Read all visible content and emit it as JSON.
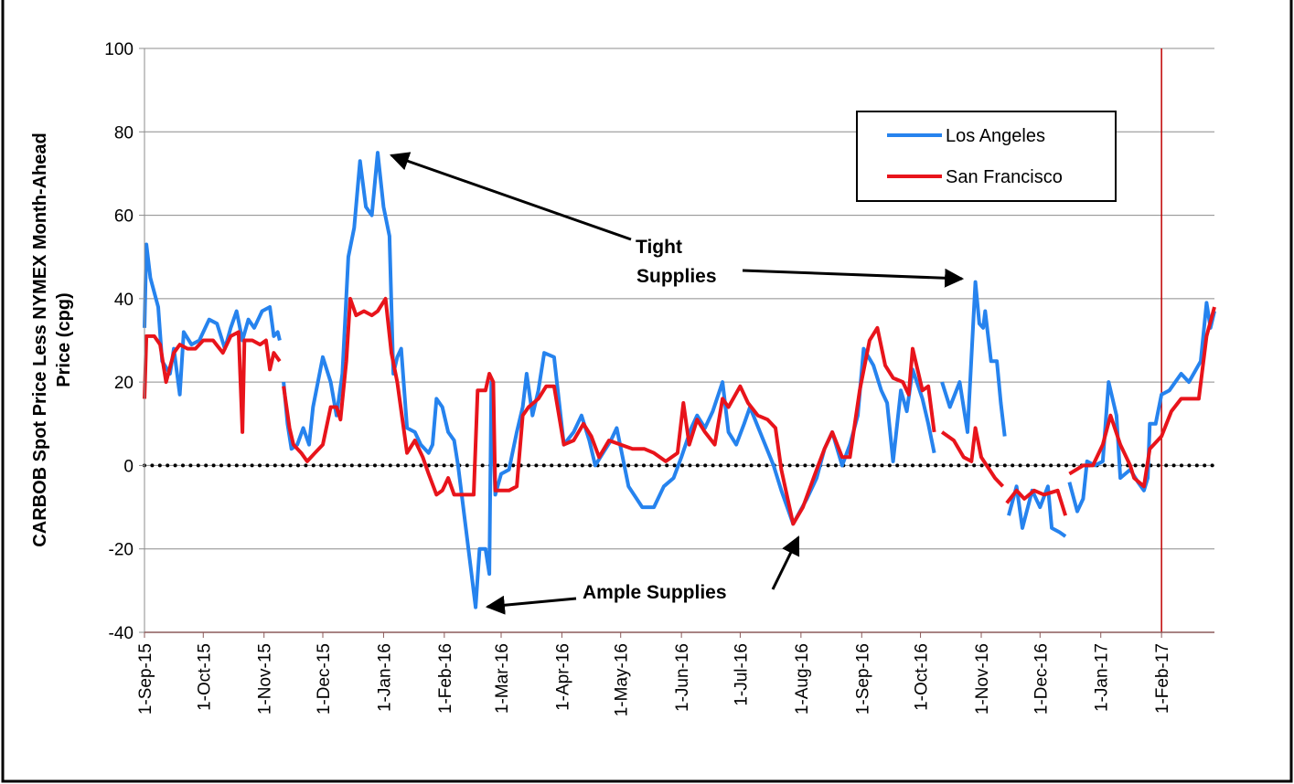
{
  "chart_data": {
    "type": "line",
    "ylabel": [
      "CARBOB Spot Price Less NYMEX Month-Ahead",
      "Price (cpg)"
    ],
    "xlim": [
      "2015-09-01",
      "2017-02-28"
    ],
    "ylim": [
      -40,
      100
    ],
    "yticks": [
      -40,
      -20,
      0,
      20,
      40,
      60,
      80,
      100
    ],
    "xticks": [
      {
        "value": "2015-09-01",
        "label": "1-Sep-15"
      },
      {
        "value": "2015-10-01",
        "label": "1-Oct-15"
      },
      {
        "value": "2015-11-01",
        "label": "1-Nov-15"
      },
      {
        "value": "2015-12-01",
        "label": "1-Dec-15"
      },
      {
        "value": "2016-01-01",
        "label": "1-Jan-16"
      },
      {
        "value": "2016-02-01",
        "label": "1-Feb-16"
      },
      {
        "value": "2016-03-01",
        "label": "1-Mar-16"
      },
      {
        "value": "2016-04-01",
        "label": "1-Apr-16"
      },
      {
        "value": "2016-05-01",
        "label": "1-May-16"
      },
      {
        "value": "2016-06-01",
        "label": "1-Jun-16"
      },
      {
        "value": "2016-07-01",
        "label": "1-Jul-16"
      },
      {
        "value": "2016-08-01",
        "label": "1-Aug-16"
      },
      {
        "value": "2016-09-01",
        "label": "1-Sep-16"
      },
      {
        "value": "2016-10-01",
        "label": "1-Oct-16"
      },
      {
        "value": "2016-11-01",
        "label": "1-Nov-16"
      },
      {
        "value": "2016-12-01",
        "label": "1-Dec-16"
      },
      {
        "value": "2017-01-01",
        "label": "1-Jan-17"
      },
      {
        "value": "2017-02-01",
        "label": "1-Feb-17"
      }
    ],
    "grid": true,
    "legend": "upper right",
    "reference_lines": [
      {
        "y": 0,
        "color": "#000000",
        "style": "dotted"
      }
    ],
    "vertical_lines": [
      {
        "x": "2017-02-01",
        "color": "#c00000"
      }
    ],
    "annotations": [
      "Tight",
      "Supplies",
      "Ample Supplies"
    ],
    "series": [
      {
        "name": "Los Angeles",
        "color": "#2683ee",
        "x": [
          "2015-09-01",
          "2015-09-02",
          "2015-09-04",
          "2015-09-08",
          "2015-09-10",
          "2015-09-14",
          "2015-09-16",
          "2015-09-19",
          "2015-09-21",
          "2015-09-25",
          "2015-09-29",
          "2015-10-04",
          "2015-10-08",
          "2015-10-12",
          "2015-10-15",
          "2015-10-18",
          "2015-10-21",
          "2015-10-24",
          "2015-10-27",
          "2015-10-31",
          "2015-11-04",
          "2015-11-06",
          "2015-11-08",
          "2015-11-09",
          "2015-11-10",
          "2015-11-11",
          "2015-11-13",
          "2015-11-15",
          "2015-11-18",
          "2015-11-21",
          "2015-11-24",
          "2015-11-26",
          "2015-12-01",
          "2015-12-05",
          "2015-12-08",
          "2015-12-11",
          "2015-12-14",
          "2015-12-17",
          "2015-12-20",
          "2015-12-23",
          "2015-12-26",
          "2015-12-29",
          "2016-01-01",
          "2016-01-04",
          "2016-01-06",
          "2016-01-08",
          "2016-01-10",
          "2016-01-13",
          "2016-01-17",
          "2016-01-20",
          "2016-01-24",
          "2016-01-26",
          "2016-01-28",
          "2016-01-31",
          "2016-02-03",
          "2016-02-06",
          "2016-02-08",
          "2016-02-12",
          "2016-02-17",
          "2016-02-19",
          "2016-02-22",
          "2016-02-24",
          "2016-02-25",
          "2016-02-27",
          "2016-03-01",
          "2016-03-05",
          "2016-03-09",
          "2016-03-12",
          "2016-03-14",
          "2016-03-17",
          "2016-03-20",
          "2016-03-23",
          "2016-03-28",
          "2016-04-02",
          "2016-04-07",
          "2016-04-11",
          "2016-04-15",
          "2016-04-18",
          "2016-04-22",
          "2016-04-26",
          "2016-04-29",
          "2016-05-05",
          "2016-05-12",
          "2016-05-18",
          "2016-05-23",
          "2016-05-28",
          "2016-06-01",
          "2016-06-06",
          "2016-06-09",
          "2016-06-13",
          "2016-06-17",
          "2016-06-22",
          "2016-06-25",
          "2016-06-29",
          "2016-07-03",
          "2016-07-06",
          "2016-07-12",
          "2016-07-18",
          "2016-07-22",
          "2016-07-28",
          "2016-08-04",
          "2016-08-09",
          "2016-08-13",
          "2016-08-17",
          "2016-08-22",
          "2016-08-26",
          "2016-08-30",
          "2016-09-02",
          "2016-09-07",
          "2016-09-11",
          "2016-09-14",
          "2016-09-17",
          "2016-09-21",
          "2016-09-24",
          "2016-09-27",
          "2016-10-02",
          "2016-10-05",
          "2016-10-08",
          "2016-10-10",
          "2016-10-12",
          "2016-10-16",
          "2016-10-21",
          "2016-10-25",
          "2016-10-29",
          "2016-10-31",
          "2016-11-02",
          "2016-11-03",
          "2016-11-06",
          "2016-11-09",
          "2016-11-11",
          "2016-11-13",
          "2016-11-14",
          "2016-11-15",
          "2016-11-19",
          "2016-11-22",
          "2016-11-27",
          "2016-12-01",
          "2016-12-05",
          "2016-12-07",
          "2016-12-11",
          "2016-12-14",
          "2016-12-15",
          "2016-12-16",
          "2016-12-20",
          "2016-12-23",
          "2016-12-25",
          "2016-12-29",
          "2017-01-02",
          "2017-01-05",
          "2017-01-09",
          "2017-01-11",
          "2017-01-16",
          "2017-01-20",
          "2017-01-23",
          "2017-01-25",
          "2017-01-26",
          "2017-01-29",
          "2017-02-01",
          "2017-02-05",
          "2017-02-11",
          "2017-02-15",
          "2017-02-21",
          "2017-02-24",
          "2017-02-26",
          "2017-02-28"
        ],
        "values": [
          33,
          53,
          45,
          38,
          25,
          22,
          28,
          17,
          32,
          29,
          30,
          35,
          34,
          28,
          33,
          37,
          30,
          35,
          33,
          37,
          38,
          31,
          32,
          30,
          null,
          20,
          10,
          4,
          5,
          9,
          5,
          14,
          26,
          20,
          12,
          22,
          50,
          57,
          73,
          62,
          60,
          75,
          62,
          55,
          22,
          26,
          28,
          9,
          8,
          5,
          3,
          5,
          16,
          14,
          8,
          6,
          0,
          -15,
          -34,
          -20,
          -20,
          -26,
          20,
          -7,
          -2,
          -1,
          8,
          14,
          22,
          12,
          18,
          27,
          26,
          5,
          8,
          12,
          6,
          0,
          3,
          6,
          9,
          -5,
          -10,
          -10,
          -5,
          -3,
          2,
          9,
          12,
          9,
          13,
          20,
          8,
          5,
          10,
          14,
          7,
          0,
          -6,
          -14,
          -8,
          -3,
          4,
          8,
          0,
          5,
          12,
          28,
          24,
          18,
          15,
          1,
          18,
          13,
          23,
          16,
          10,
          3,
          null,
          20,
          14,
          20,
          8,
          44,
          34,
          33,
          37,
          25,
          25,
          15,
          7,
          null,
          -12,
          -5,
          -15,
          -6,
          -10,
          -5,
          -15,
          -16,
          -17,
          null,
          -4,
          -11,
          -8,
          1,
          0,
          1,
          20,
          12,
          -3,
          -1,
          -4,
          -6,
          -3,
          10,
          10,
          17,
          18,
          22,
          20,
          25,
          39,
          33,
          37
        ]
      },
      {
        "name": "San Francisco",
        "color": "#e8141b",
        "x": [
          "2015-09-01",
          "2015-09-02",
          "2015-09-06",
          "2015-09-09",
          "2015-09-12",
          "2015-09-16",
          "2015-09-19",
          "2015-09-23",
          "2015-09-27",
          "2015-10-01",
          "2015-10-06",
          "2015-10-11",
          "2015-10-15",
          "2015-10-19",
          "2015-10-21",
          "2015-10-22",
          "2015-10-26",
          "2015-10-30",
          "2015-11-02",
          "2015-11-04",
          "2015-11-06",
          "2015-11-09",
          "2015-11-10",
          "2015-11-11",
          "2015-11-14",
          "2015-11-16",
          "2015-11-20",
          "2015-11-23",
          "2015-11-27",
          "2015-12-01",
          "2015-12-05",
          "2015-12-08",
          "2015-12-10",
          "2015-12-13",
          "2015-12-15",
          "2015-12-18",
          "2015-12-22",
          "2015-12-26",
          "2015-12-29",
          "2016-01-02",
          "2016-01-05",
          "2016-01-08",
          "2016-01-13",
          "2016-01-17",
          "2016-01-21",
          "2016-01-24",
          "2016-01-28",
          "2016-01-31",
          "2016-02-03",
          "2016-02-06",
          "2016-02-10",
          "2016-02-16",
          "2016-02-18",
          "2016-02-22",
          "2016-02-24",
          "2016-02-26",
          "2016-02-27",
          "2016-03-05",
          "2016-03-09",
          "2016-03-12",
          "2016-03-15",
          "2016-03-20",
          "2016-03-24",
          "2016-03-28",
          "2016-04-02",
          "2016-04-07",
          "2016-04-12",
          "2016-04-16",
          "2016-04-20",
          "2016-04-25",
          "2016-05-01",
          "2016-05-07",
          "2016-05-13",
          "2016-05-18",
          "2016-05-24",
          "2016-05-30",
          "2016-06-02",
          "2016-06-05",
          "2016-06-09",
          "2016-06-13",
          "2016-06-18",
          "2016-06-22",
          "2016-06-25",
          "2016-07-01",
          "2016-07-05",
          "2016-07-10",
          "2016-07-15",
          "2016-07-19",
          "2016-07-22",
          "2016-07-28",
          "2016-08-02",
          "2016-08-09",
          "2016-08-13",
          "2016-08-17",
          "2016-08-22",
          "2016-08-26",
          "2016-08-31",
          "2016-09-05",
          "2016-09-09",
          "2016-09-13",
          "2016-09-17",
          "2016-09-22",
          "2016-09-25",
          "2016-09-27",
          "2016-10-02",
          "2016-10-05",
          "2016-10-08",
          "2016-10-10",
          "2016-10-12",
          "2016-10-18",
          "2016-10-23",
          "2016-10-27",
          "2016-10-29",
          "2016-11-01",
          "2016-11-08",
          "2016-11-12",
          "2016-11-13",
          "2016-11-14",
          "2016-11-19",
          "2016-11-23",
          "2016-11-28",
          "2016-12-03",
          "2016-12-10",
          "2016-12-14",
          "2016-12-15",
          "2016-12-16",
          "2016-12-23",
          "2016-12-28",
          "2017-01-02",
          "2017-01-06",
          "2017-01-11",
          "2017-01-16",
          "2017-01-18",
          "2017-01-23",
          "2017-01-26",
          "2017-02-01",
          "2017-02-06",
          "2017-02-11",
          "2017-02-20",
          "2017-02-24",
          "2017-02-28"
        ],
        "values": [
          16,
          31,
          31,
          29,
          20,
          27,
          29,
          28,
          28,
          30,
          30,
          27,
          31,
          32,
          8,
          30,
          30,
          29,
          30,
          23,
          27,
          25,
          null,
          19,
          9,
          5,
          3,
          1,
          3,
          5,
          14,
          14,
          11,
          25,
          40,
          36,
          37,
          36,
          37,
          40,
          27,
          20,
          3,
          6,
          2,
          -2,
          -7,
          -6,
          -3,
          -7,
          -7,
          -7,
          18,
          18,
          22,
          20,
          -6,
          -6,
          -5,
          12,
          14,
          16,
          19,
          19,
          5,
          6,
          10,
          7,
          2,
          6,
          5,
          4,
          4,
          3,
          1,
          3,
          15,
          5,
          11,
          8,
          5,
          16,
          14,
          19,
          15,
          12,
          11,
          9,
          -1,
          -14,
          -10,
          -1,
          4,
          8,
          2,
          2,
          18,
          30,
          33,
          24,
          21,
          20,
          17,
          28,
          18,
          19,
          8,
          null,
          8,
          6,
          2,
          1,
          9,
          2,
          -3,
          -5,
          null,
          -9,
          -6,
          -8,
          -6,
          -7,
          -6,
          -12,
          null,
          -2,
          0,
          0,
          5,
          12,
          5,
          0,
          -3,
          -5,
          4,
          7,
          13,
          16,
          16,
          31,
          38
        ]
      }
    ]
  }
}
